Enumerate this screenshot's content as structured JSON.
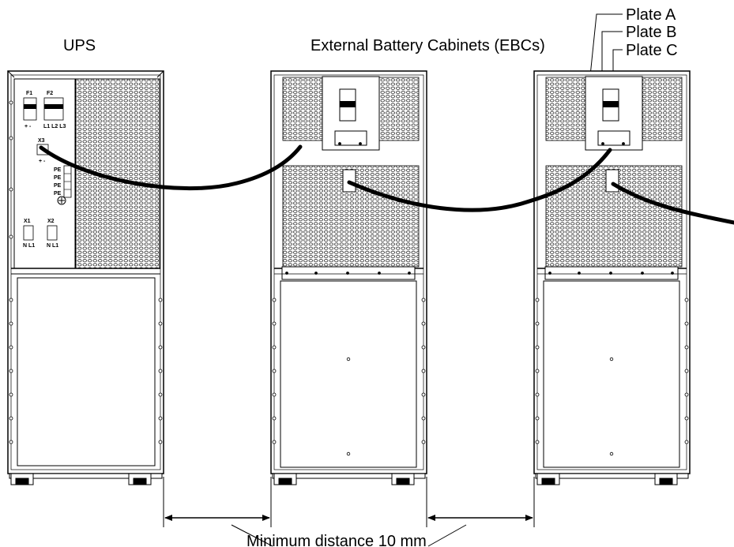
{
  "labels": {
    "ups": "UPS",
    "ebcs": "External Battery Cabinets (EBCs)",
    "plate_a": "Plate A",
    "plate_b": "Plate B",
    "plate_c": "Plate C",
    "min_distance": "Minimum distance 10 mm"
  },
  "ups_panel": {
    "f1": "F1",
    "f1_terms": "+  -",
    "f2": "F2",
    "f2_terms": "L1 L2 L3",
    "x3": "X3",
    "x3_terms": "+  -",
    "pe": [
      "PE",
      "PE",
      "PE",
      "PE"
    ],
    "x1": "X1",
    "x1_terms": "N L1",
    "x2": "X2",
    "x2_terms": "N L1"
  }
}
